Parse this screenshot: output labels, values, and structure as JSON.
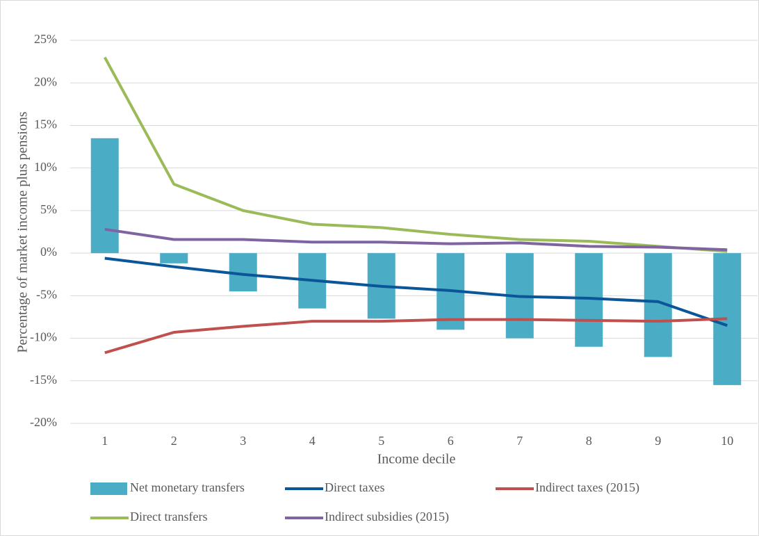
{
  "chart_data": {
    "type": "bar",
    "x_label": "Income decile",
    "y_label": "Percentage of market income plus pensions",
    "categories": [
      "1",
      "2",
      "3",
      "4",
      "5",
      "6",
      "7",
      "8",
      "9",
      "10"
    ],
    "ylim": [
      -20,
      25
    ],
    "yticks": [
      {
        "value": -20,
        "label": "-20%"
      },
      {
        "value": -15,
        "label": "-15%"
      },
      {
        "value": -10,
        "label": "-10%"
      },
      {
        "value": -5,
        "label": "-5%"
      },
      {
        "value": 0,
        "label": "0%"
      },
      {
        "value": 5,
        "label": "5%"
      },
      {
        "value": 10,
        "label": "10%"
      },
      {
        "value": 15,
        "label": "15%"
      },
      {
        "value": 20,
        "label": "20%"
      },
      {
        "value": 25,
        "label": "25%"
      }
    ],
    "grid": true,
    "series": [
      {
        "name": "Net monetary transfers",
        "type": "bar",
        "color": "#4bacc6",
        "values": [
          13.5,
          -1.2,
          -4.5,
          -6.5,
          -7.7,
          -9.0,
          -10.0,
          -11.0,
          -12.2,
          -15.5
        ]
      },
      {
        "name": "Direct taxes",
        "type": "line",
        "color": "#0a5699",
        "values": [
          -0.6,
          -1.6,
          -2.5,
          -3.2,
          -3.9,
          -4.4,
          -5.1,
          -5.3,
          -5.7,
          -8.5
        ]
      },
      {
        "name": "Indirect taxes (2015)",
        "type": "line",
        "color": "#c0504d",
        "values": [
          -11.7,
          -9.3,
          -8.6,
          -8.0,
          -8.0,
          -7.8,
          -7.8,
          -7.9,
          -8.0,
          -7.7
        ]
      },
      {
        "name": "Direct transfers",
        "type": "line",
        "color": "#9bbb59",
        "values": [
          23.0,
          8.1,
          5.0,
          3.4,
          3.0,
          2.2,
          1.6,
          1.4,
          0.8,
          0.2
        ]
      },
      {
        "name": "Indirect subsidies (2015)",
        "type": "line",
        "color": "#8064a2",
        "values": [
          2.8,
          1.6,
          1.6,
          1.3,
          1.3,
          1.1,
          1.2,
          0.8,
          0.7,
          0.4
        ]
      }
    ]
  }
}
